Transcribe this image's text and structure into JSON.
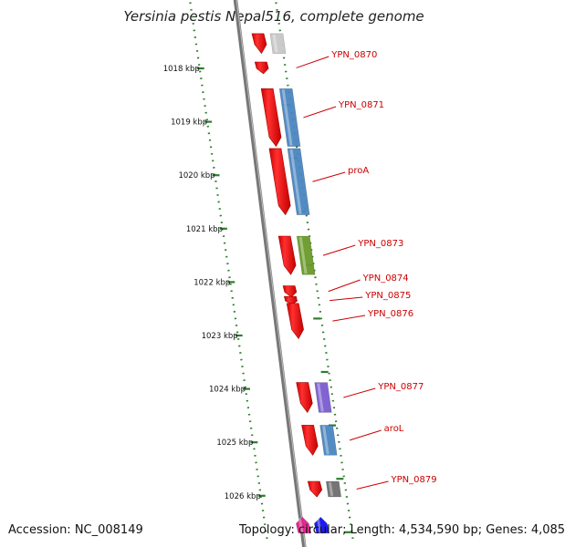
{
  "title": "Yersinia pestis Nepal516, complete genome",
  "footer": {
    "accession": "Accession: NC_008149",
    "summary": "Topology: circular; Length: 4,534,590 bp; Genes: 4,085"
  },
  "colors": {
    "forward": "#ff0000",
    "backbone": "#777777",
    "scale": "#2e7d2e",
    "label": "#cc0000"
  },
  "scale_ticks": [
    {
      "label": "1018 kbp",
      "pos": 1018
    },
    {
      "label": "1019 kbp",
      "pos": 1019
    },
    {
      "label": "1020 kbp",
      "pos": 1020
    },
    {
      "label": "1021 kbp",
      "pos": 1021
    },
    {
      "label": "1022 kbp",
      "pos": 1022
    },
    {
      "label": "1023 kbp",
      "pos": 1023
    },
    {
      "label": "1024 kbp",
      "pos": 1024
    },
    {
      "label": "1025 kbp",
      "pos": 1025
    },
    {
      "label": "1026 kbp",
      "pos": 1026
    }
  ],
  "genes": [
    {
      "name": "",
      "start": 1017.35,
      "end": 1017.72,
      "cog": "#c8c8c8",
      "labeled": false
    },
    {
      "name": "YPN_0870",
      "start": 1017.88,
      "end": 1018.1,
      "cog": null,
      "labeled": true
    },
    {
      "name": "YPN_0871",
      "start": 1018.38,
      "end": 1019.46,
      "cog": "#4a86c0",
      "labeled": true
    },
    {
      "name": "proA",
      "start": 1019.5,
      "end": 1020.74,
      "cog": "#4a86c0",
      "labeled": true
    },
    {
      "name": "YPN_0873",
      "start": 1021.14,
      "end": 1021.86,
      "cog": "#6a9a2a",
      "labeled": true
    },
    {
      "name": "YPN_0874",
      "start": 1022.07,
      "end": 1022.28,
      "cog": null,
      "labeled": true
    },
    {
      "name": "YPN_0875",
      "start": 1022.27,
      "end": 1022.42,
      "cog": null,
      "labeled": true
    },
    {
      "name": "YPN_0876",
      "start": 1022.4,
      "end": 1023.06,
      "cog": null,
      "labeled": true
    },
    {
      "name": "YPN_0877",
      "start": 1023.88,
      "end": 1024.44,
      "cog": "#7a5cd0",
      "labeled": true
    },
    {
      "name": "aroL",
      "start": 1024.68,
      "end": 1025.24,
      "cog": "#4a86c0",
      "labeled": true
    },
    {
      "name": "YPN_0879",
      "start": 1025.73,
      "end": 1026.02,
      "cog": "#6e6e6e",
      "labeled": true
    },
    {
      "name": "",
      "start": 1026.4,
      "end": 1026.7,
      "cog": "#e0208a",
      "labeled": false
    },
    {
      "name": "",
      "start": 1026.4,
      "end": 1026.7,
      "cog": "#1010ee",
      "labeled": false
    }
  ]
}
